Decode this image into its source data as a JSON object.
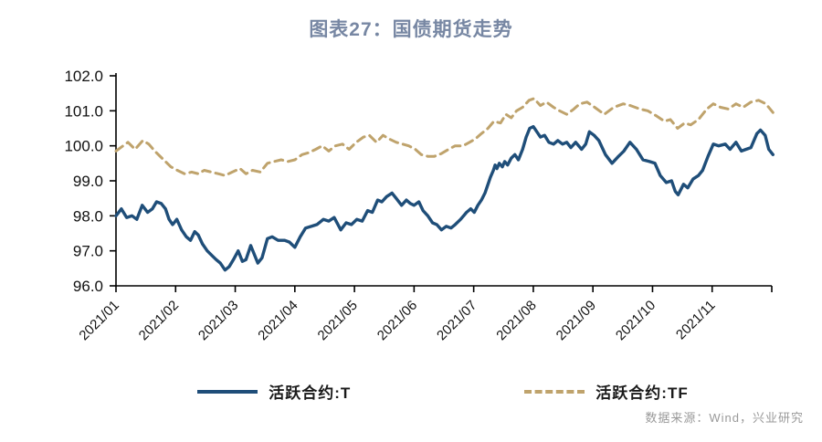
{
  "title": "图表27：国债期货走势",
  "source": "数据来源：Wind，兴业研究",
  "colors": {
    "title": "#7787A3",
    "axis": "#000000",
    "tick_label": "#111111",
    "source": "#999999",
    "background": "#FFFFFF",
    "series_t": "#1F4E79",
    "series_tf": "#BFA36C"
  },
  "legend": [
    {
      "label": "活跃合约:T",
      "color": "#1F4E79",
      "style": "solid"
    },
    {
      "label": "活跃合约:TF",
      "color": "#BFA36C",
      "style": "dashed"
    }
  ],
  "chart_data": {
    "type": "line",
    "title": "图表27：国债期货走势",
    "xlabel": "",
    "ylabel": "",
    "x_unit": "decimal month of 2021 (1 = 2021/01, 12 = 2021/12)",
    "ylim": [
      96.0,
      102.0
    ],
    "grid": false,
    "legend_position": "bottom",
    "yticks": [
      96.0,
      97.0,
      98.0,
      99.0,
      100.0,
      101.0,
      102.0
    ],
    "xticks": [
      {
        "m": 1,
        "label": "2021/01"
      },
      {
        "m": 2,
        "label": "2021/02"
      },
      {
        "m": 3,
        "label": "2021/03"
      },
      {
        "m": 4,
        "label": "2021/04"
      },
      {
        "m": 5,
        "label": "2021/05"
      },
      {
        "m": 6,
        "label": "2021/06"
      },
      {
        "m": 7,
        "label": "2021/07"
      },
      {
        "m": 8,
        "label": "2021/08"
      },
      {
        "m": 9,
        "label": "2021/09"
      },
      {
        "m": 10,
        "label": "2021/10"
      },
      {
        "m": 11,
        "label": "2021/11"
      },
      {
        "m": 12,
        "label": ""
      }
    ],
    "series": [
      {
        "id": "t",
        "name": "活跃合约:T",
        "color": "#1F4E79",
        "dash": null,
        "points": [
          [
            1.0,
            98.0
          ],
          [
            1.09,
            98.2
          ],
          [
            1.18,
            97.95
          ],
          [
            1.27,
            98.0
          ],
          [
            1.35,
            97.9
          ],
          [
            1.44,
            98.3
          ],
          [
            1.53,
            98.1
          ],
          [
            1.61,
            98.2
          ],
          [
            1.68,
            98.4
          ],
          [
            1.76,
            98.35
          ],
          [
            1.83,
            98.2
          ],
          [
            1.89,
            97.9
          ],
          [
            1.95,
            97.75
          ],
          [
            2.02,
            97.9
          ],
          [
            2.1,
            97.6
          ],
          [
            2.18,
            97.4
          ],
          [
            2.25,
            97.3
          ],
          [
            2.32,
            97.55
          ],
          [
            2.38,
            97.45
          ],
          [
            2.45,
            97.2
          ],
          [
            2.53,
            97.0
          ],
          [
            2.62,
            96.85
          ],
          [
            2.68,
            96.75
          ],
          [
            2.75,
            96.65
          ],
          [
            2.83,
            96.45
          ],
          [
            2.9,
            96.55
          ],
          [
            2.97,
            96.75
          ],
          [
            3.05,
            97.0
          ],
          [
            3.12,
            96.7
          ],
          [
            3.18,
            96.75
          ],
          [
            3.26,
            97.15
          ],
          [
            3.32,
            96.9
          ],
          [
            3.38,
            96.65
          ],
          [
            3.45,
            96.8
          ],
          [
            3.54,
            97.35
          ],
          [
            3.62,
            97.4
          ],
          [
            3.72,
            97.3
          ],
          [
            3.83,
            97.3
          ],
          [
            3.91,
            97.25
          ],
          [
            4.0,
            97.1
          ],
          [
            4.09,
            97.4
          ],
          [
            4.18,
            97.65
          ],
          [
            4.28,
            97.7
          ],
          [
            4.37,
            97.75
          ],
          [
            4.48,
            97.9
          ],
          [
            4.57,
            97.85
          ],
          [
            4.66,
            97.95
          ],
          [
            4.77,
            97.6
          ],
          [
            4.86,
            97.8
          ],
          [
            4.95,
            97.75
          ],
          [
            5.04,
            97.9
          ],
          [
            5.13,
            97.85
          ],
          [
            5.22,
            98.15
          ],
          [
            5.3,
            98.1
          ],
          [
            5.39,
            98.45
          ],
          [
            5.46,
            98.4
          ],
          [
            5.54,
            98.55
          ],
          [
            5.63,
            98.65
          ],
          [
            5.7,
            98.5
          ],
          [
            5.79,
            98.3
          ],
          [
            5.87,
            98.45
          ],
          [
            5.94,
            98.35
          ],
          [
            6.0,
            98.3
          ],
          [
            6.08,
            98.4
          ],
          [
            6.15,
            98.15
          ],
          [
            6.23,
            98.0
          ],
          [
            6.31,
            97.8
          ],
          [
            6.38,
            97.75
          ],
          [
            6.46,
            97.6
          ],
          [
            6.54,
            97.7
          ],
          [
            6.62,
            97.65
          ],
          [
            6.69,
            97.75
          ],
          [
            6.78,
            97.9
          ],
          [
            6.88,
            98.1
          ],
          [
            6.95,
            98.2
          ],
          [
            7.01,
            98.1
          ],
          [
            7.07,
            98.3
          ],
          [
            7.13,
            98.45
          ],
          [
            7.19,
            98.65
          ],
          [
            7.24,
            98.9
          ],
          [
            7.28,
            99.1
          ],
          [
            7.33,
            99.3
          ],
          [
            7.36,
            99.45
          ],
          [
            7.39,
            99.35
          ],
          [
            7.43,
            99.5
          ],
          [
            7.48,
            99.4
          ],
          [
            7.52,
            99.55
          ],
          [
            7.57,
            99.45
          ],
          [
            7.63,
            99.65
          ],
          [
            7.69,
            99.75
          ],
          [
            7.75,
            99.6
          ],
          [
            7.82,
            99.9
          ],
          [
            7.88,
            100.25
          ],
          [
            7.94,
            100.5
          ],
          [
            8.0,
            100.55
          ],
          [
            8.06,
            100.4
          ],
          [
            8.12,
            100.25
          ],
          [
            8.19,
            100.3
          ],
          [
            8.26,
            100.1
          ],
          [
            8.34,
            100.05
          ],
          [
            8.41,
            100.15
          ],
          [
            8.49,
            100.05
          ],
          [
            8.56,
            100.1
          ],
          [
            8.63,
            99.95
          ],
          [
            8.71,
            100.1
          ],
          [
            8.81,
            99.9
          ],
          [
            8.88,
            100.05
          ],
          [
            8.94,
            100.4
          ],
          [
            9.02,
            100.3
          ],
          [
            9.1,
            100.15
          ],
          [
            9.21,
            99.75
          ],
          [
            9.32,
            99.5
          ],
          [
            9.43,
            99.7
          ],
          [
            9.52,
            99.85
          ],
          [
            9.62,
            100.1
          ],
          [
            9.73,
            99.9
          ],
          [
            9.84,
            99.6
          ],
          [
            9.95,
            99.55
          ],
          [
            10.04,
            99.5
          ],
          [
            10.13,
            99.15
          ],
          [
            10.23,
            98.95
          ],
          [
            10.32,
            99.0
          ],
          [
            10.38,
            98.7
          ],
          [
            10.43,
            98.6
          ],
          [
            10.52,
            98.9
          ],
          [
            10.59,
            98.8
          ],
          [
            10.68,
            99.05
          ],
          [
            10.77,
            99.15
          ],
          [
            10.84,
            99.3
          ],
          [
            10.93,
            99.7
          ],
          [
            11.02,
            100.05
          ],
          [
            11.11,
            100.0
          ],
          [
            11.22,
            100.05
          ],
          [
            11.3,
            99.9
          ],
          [
            11.4,
            100.1
          ],
          [
            11.49,
            99.85
          ],
          [
            11.57,
            99.9
          ],
          [
            11.65,
            99.95
          ],
          [
            11.75,
            100.35
          ],
          [
            11.81,
            100.45
          ],
          [
            11.89,
            100.3
          ],
          [
            11.95,
            99.9
          ],
          [
            12.02,
            99.75
          ]
        ]
      },
      {
        "id": "tf",
        "name": "活跃合约:TF",
        "color": "#BFA36C",
        "dash": [
          9,
          6
        ],
        "points": [
          [
            1.0,
            99.85
          ],
          [
            1.08,
            99.95
          ],
          [
            1.2,
            100.1
          ],
          [
            1.32,
            99.9
          ],
          [
            1.45,
            100.15
          ],
          [
            1.55,
            100.05
          ],
          [
            1.65,
            99.85
          ],
          [
            1.8,
            99.6
          ],
          [
            1.92,
            99.4
          ],
          [
            2.03,
            99.3
          ],
          [
            2.15,
            99.2
          ],
          [
            2.27,
            99.25
          ],
          [
            2.38,
            99.2
          ],
          [
            2.48,
            99.3
          ],
          [
            2.6,
            99.25
          ],
          [
            2.72,
            99.2
          ],
          [
            2.83,
            99.15
          ],
          [
            2.95,
            99.25
          ],
          [
            3.08,
            99.35
          ],
          [
            3.18,
            99.2
          ],
          [
            3.29,
            99.3
          ],
          [
            3.42,
            99.25
          ],
          [
            3.54,
            99.5
          ],
          [
            3.65,
            99.55
          ],
          [
            3.77,
            99.6
          ],
          [
            3.88,
            99.55
          ],
          [
            4.0,
            99.6
          ],
          [
            4.12,
            99.75
          ],
          [
            4.23,
            99.8
          ],
          [
            4.35,
            99.9
          ],
          [
            4.46,
            100.0
          ],
          [
            4.57,
            99.85
          ],
          [
            4.68,
            100.0
          ],
          [
            4.8,
            100.05
          ],
          [
            4.91,
            99.9
          ],
          [
            5.03,
            100.1
          ],
          [
            5.15,
            100.25
          ],
          [
            5.25,
            100.3
          ],
          [
            5.37,
            100.1
          ],
          [
            5.48,
            100.3
          ],
          [
            5.58,
            100.2
          ],
          [
            5.7,
            100.1
          ],
          [
            5.81,
            100.05
          ],
          [
            5.91,
            100.0
          ],
          [
            6.02,
            99.9
          ],
          [
            6.12,
            99.75
          ],
          [
            6.23,
            99.7
          ],
          [
            6.34,
            99.7
          ],
          [
            6.46,
            99.78
          ],
          [
            6.58,
            99.9
          ],
          [
            6.69,
            100.0
          ],
          [
            6.82,
            100.0
          ],
          [
            6.93,
            100.1
          ],
          [
            7.03,
            100.2
          ],
          [
            7.13,
            100.35
          ],
          [
            7.24,
            100.5
          ],
          [
            7.34,
            100.7
          ],
          [
            7.45,
            100.65
          ],
          [
            7.54,
            100.9
          ],
          [
            7.63,
            100.8
          ],
          [
            7.72,
            101.0
          ],
          [
            7.82,
            101.1
          ],
          [
            7.93,
            101.3
          ],
          [
            8.01,
            101.35
          ],
          [
            8.12,
            101.15
          ],
          [
            8.22,
            101.25
          ],
          [
            8.34,
            101.1
          ],
          [
            8.44,
            101.0
          ],
          [
            8.56,
            100.9
          ],
          [
            8.68,
            101.05
          ],
          [
            8.78,
            101.2
          ],
          [
            8.9,
            101.25
          ],
          [
            9.03,
            101.1
          ],
          [
            9.19,
            100.9
          ],
          [
            9.35,
            101.1
          ],
          [
            9.51,
            101.2
          ],
          [
            9.63,
            101.15
          ],
          [
            9.79,
            101.05
          ],
          [
            9.92,
            101.0
          ],
          [
            10.07,
            100.85
          ],
          [
            10.2,
            100.7
          ],
          [
            10.3,
            100.75
          ],
          [
            10.42,
            100.5
          ],
          [
            10.54,
            100.65
          ],
          [
            10.64,
            100.6
          ],
          [
            10.77,
            100.75
          ],
          [
            10.91,
            101.05
          ],
          [
            11.02,
            101.2
          ],
          [
            11.14,
            101.1
          ],
          [
            11.27,
            101.05
          ],
          [
            11.4,
            101.2
          ],
          [
            11.52,
            101.1
          ],
          [
            11.65,
            101.25
          ],
          [
            11.78,
            101.3
          ],
          [
            11.9,
            101.2
          ],
          [
            12.02,
            100.95
          ]
        ]
      }
    ]
  }
}
